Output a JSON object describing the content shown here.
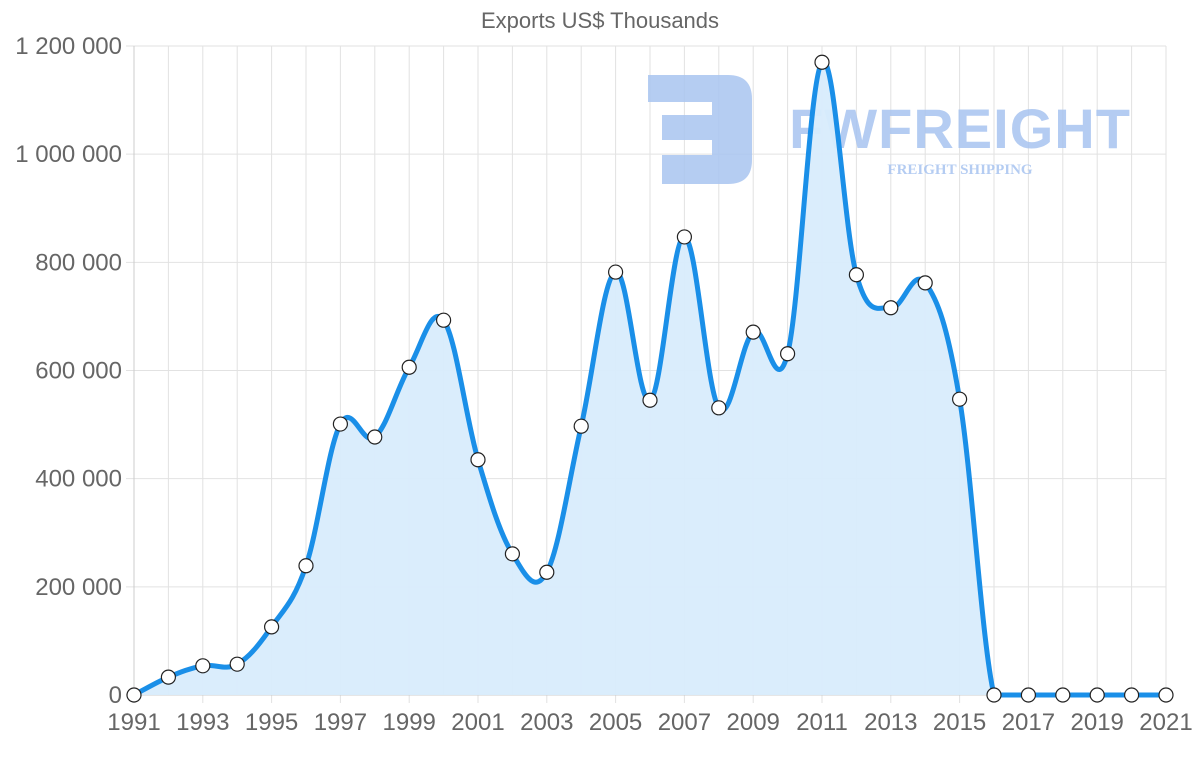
{
  "chart_data": {
    "type": "line",
    "title": "Exports US$ Thousands",
    "xlabel": "",
    "ylabel": "",
    "ylim": [
      0,
      1200000
    ],
    "y_ticks": [
      0,
      200000,
      400000,
      600000,
      800000,
      1000000,
      1200000
    ],
    "y_tick_labels": [
      "0",
      "200 000",
      "400 000",
      "600 000",
      "800 000",
      "1 000 000",
      "1 200 000"
    ],
    "x_tick_labels": [
      "1991",
      "1993",
      "1995",
      "1997",
      "1999",
      "2001",
      "2003",
      "2005",
      "2007",
      "2009",
      "2011",
      "2013",
      "2015",
      "2017",
      "2019",
      "2021"
    ],
    "grid": true,
    "fill": true,
    "legend": null,
    "x": [
      1991,
      1992,
      1993,
      1994,
      1995,
      1996,
      1997,
      1998,
      1999,
      2000,
      2001,
      2002,
      2003,
      2004,
      2005,
      2006,
      2007,
      2008,
      2009,
      2010,
      2011,
      2012,
      2013,
      2014,
      2015,
      2016,
      2017,
      2018,
      2019,
      2020,
      2021
    ],
    "series": [
      {
        "name": "Exports US$ Thousands",
        "color": "#1a8fe8",
        "fill_color": "#d8ecfc",
        "values": [
          0,
          33000,
          54000,
          57000,
          126000,
          239000,
          501000,
          477000,
          606000,
          693000,
          435000,
          261000,
          227000,
          497000,
          782000,
          545000,
          847000,
          531000,
          671000,
          631000,
          1170000,
          777000,
          716000,
          762000,
          547000,
          0,
          0,
          0,
          0,
          0,
          0
        ]
      }
    ]
  },
  "watermark": {
    "brand": "FWFREIGHT",
    "tagline": "FREIGHT SHIPPING",
    "color": "#a8c4f0"
  }
}
